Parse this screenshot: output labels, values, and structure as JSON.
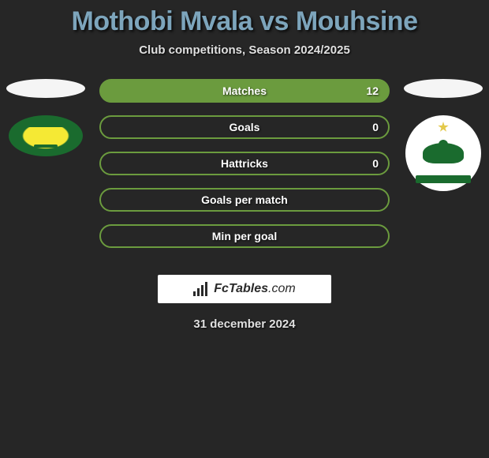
{
  "title": "Mothobi Mvala vs Mouhsine",
  "subtitle": "Club competitions, Season 2024/2025",
  "stats": [
    {
      "label": "Matches",
      "value": "12",
      "filled": true
    },
    {
      "label": "Goals",
      "value": "0",
      "filled": false
    },
    {
      "label": "Hattricks",
      "value": "0",
      "filled": false
    },
    {
      "label": "Goals per match",
      "value": "",
      "filled": false
    },
    {
      "label": "Min per goal",
      "value": "",
      "filled": false
    }
  ],
  "brand": {
    "name": "FcTables",
    "ext": ".com"
  },
  "footer_date": "31 december 2024",
  "colors": {
    "background": "#262626",
    "title": "#7da5bc",
    "bar_border": "#6b9b3e",
    "bar_fill": "#6b9b3e",
    "text_light": "#e0e0e0"
  }
}
